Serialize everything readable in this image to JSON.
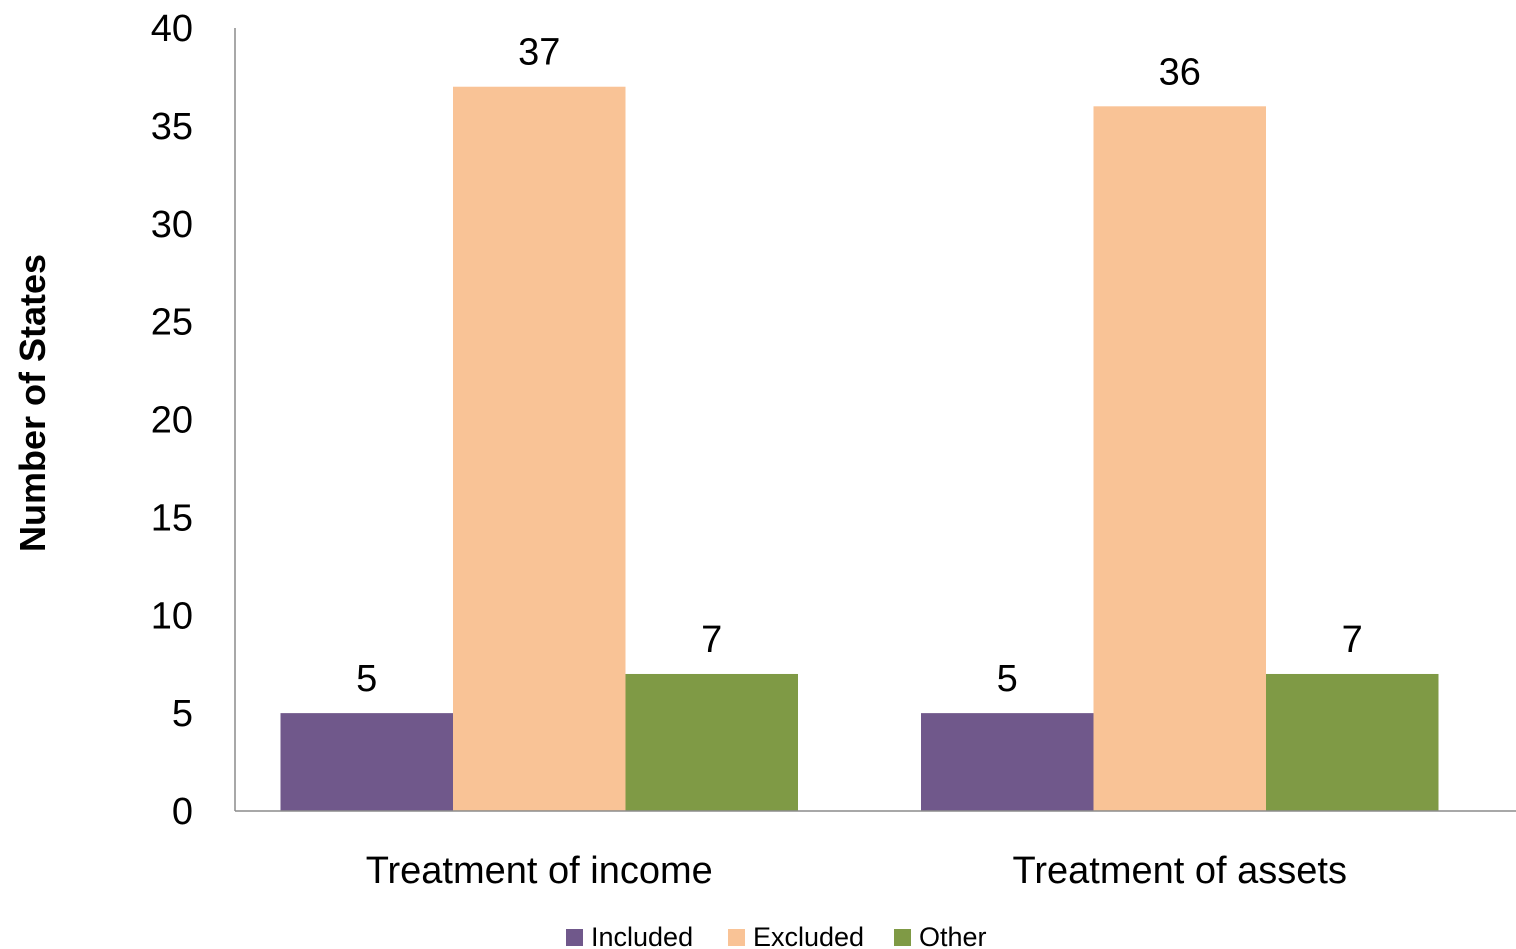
{
  "chart_data": {
    "type": "bar",
    "categories": [
      "Treatment of income",
      "Treatment of assets"
    ],
    "series": [
      {
        "name": "Included",
        "values": [
          5,
          5
        ],
        "color": "#70588b"
      },
      {
        "name": "Excluded",
        "values": [
          37,
          36
        ],
        "color": "#f9c396"
      },
      {
        "name": "Other",
        "values": [
          7,
          7
        ],
        "color": "#7f9a45"
      }
    ],
    "ylabel": "Number of States",
    "xlabel": "",
    "title": "",
    "ylim": [
      0,
      40
    ],
    "yticks": [
      0,
      5,
      10,
      15,
      20,
      25,
      30,
      35,
      40
    ],
    "grid": false,
    "legend_position": "bottom",
    "data_labels": true
  }
}
